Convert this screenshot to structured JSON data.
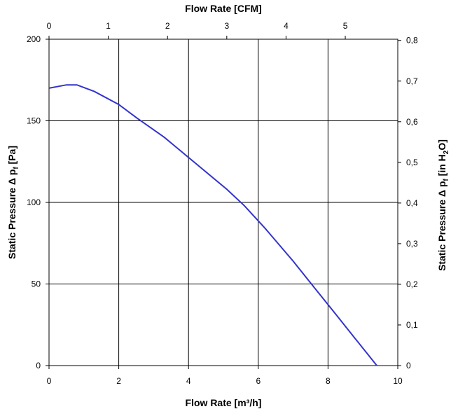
{
  "chart_data": {
    "type": "line",
    "title": "",
    "xlabel": "Flow Rate [m³/h]",
    "ylabel_parts": [
      "Static Pressure Δ p",
      "f",
      " [Pa]"
    ],
    "x2label": "Flow Rate [CFM]",
    "y2label_parts": [
      "Static Pressure Δ p",
      "f",
      " [in H",
      "2",
      "O]"
    ],
    "xlim": [
      0,
      10
    ],
    "ylim": [
      0,
      200
    ],
    "x2lim": [
      0,
      5.886
    ],
    "y2lim": [
      0,
      0.803
    ],
    "x_ticks": [
      "0",
      "2",
      "4",
      "6",
      "8",
      "10"
    ],
    "y_ticks": [
      "0",
      "50",
      "100",
      "150",
      "200"
    ],
    "x2_ticks": [
      "0",
      "1",
      "2",
      "3",
      "4",
      "5"
    ],
    "y2_ticks": [
      "0",
      "0,1",
      "0,2",
      "0,3",
      "0,4",
      "0,5",
      "0,6",
      "0,7",
      "0,8"
    ],
    "grid": true,
    "series_color": "#3333cc",
    "series": [
      {
        "x": [
          0,
          0.5,
          0.8,
          1.3,
          2.0,
          2.5,
          3.3,
          4.2,
          5.1,
          5.6,
          6.2,
          7.0,
          7.6,
          8.2,
          8.8,
          9.4
        ],
        "y": [
          170,
          172,
          172,
          168,
          160,
          152,
          140,
          124,
          108,
          98,
          84,
          64,
          48,
          32,
          16,
          0
        ]
      }
    ]
  }
}
